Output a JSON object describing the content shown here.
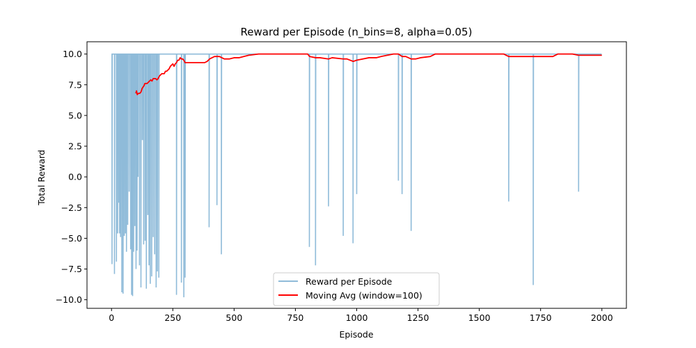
{
  "chart_data": {
    "type": "line",
    "title": "Reward per Episode (n_bins=8, alpha=0.05)",
    "xlabel": "Episode",
    "ylabel": "Total Reward",
    "xlim": [
      -100,
      2100
    ],
    "ylim": [
      -10.7,
      11.0
    ],
    "xticks": [
      0,
      250,
      500,
      750,
      1000,
      1250,
      1500,
      1750,
      2000
    ],
    "xtick_labels": [
      "0",
      "250",
      "500",
      "750",
      "1000",
      "1250",
      "1500",
      "1750",
      "2000"
    ],
    "yticks": [
      -10.0,
      -7.5,
      -5.0,
      -2.5,
      0.0,
      2.5,
      5.0,
      7.5,
      10.0
    ],
    "ytick_labels": [
      "−10.0",
      "−7.5",
      "−5.0",
      "−2.5",
      "0.0",
      "2.5",
      "5.0",
      "7.5",
      "10.0"
    ],
    "grid": false,
    "legend_position": "lower-center",
    "baseline_reward": 10.0,
    "series": [
      {
        "name": "Reward per Episode",
        "color": "#8fbbd9",
        "episodes": 2000,
        "dips": [
          [
            2,
            -7.1
          ],
          [
            12,
            -7.9
          ],
          [
            20,
            -6.9
          ],
          [
            25,
            -4.6
          ],
          [
            30,
            -2.1
          ],
          [
            33,
            -4.6
          ],
          [
            37,
            -4.9
          ],
          [
            42,
            -9.4
          ],
          [
            47,
            -9.5
          ],
          [
            52,
            -4.8
          ],
          [
            57,
            -4.6
          ],
          [
            61,
            -6.1
          ],
          [
            66,
            -3.9
          ],
          [
            72,
            -1.2
          ],
          [
            78,
            -5.9
          ],
          [
            82,
            -9.6
          ],
          [
            86,
            -9.7
          ],
          [
            90,
            -6.1
          ],
          [
            95,
            -4.0
          ],
          [
            100,
            -7.5
          ],
          [
            104,
            -6.0
          ],
          [
            108,
            0.0
          ],
          [
            114,
            -7.2
          ],
          [
            120,
            -9.0
          ],
          [
            126,
            3.0
          ],
          [
            131,
            -5.5
          ],
          [
            137,
            -5.2
          ],
          [
            142,
            -9.1
          ],
          [
            148,
            -3.1
          ],
          [
            153,
            -7.2
          ],
          [
            158,
            -8.7
          ],
          [
            164,
            -8.1
          ],
          [
            170,
            -4.9
          ],
          [
            176,
            -6.3
          ],
          [
            182,
            -9.0
          ],
          [
            187,
            -7.7
          ],
          [
            193,
            -8.2
          ],
          [
            265,
            -9.6
          ],
          [
            285,
            -8.6
          ],
          [
            295,
            -9.8
          ],
          [
            300,
            -8.2
          ],
          [
            398,
            -4.1
          ],
          [
            430,
            -2.3
          ],
          [
            448,
            -6.3
          ],
          [
            807,
            -5.7
          ],
          [
            832,
            -7.2
          ],
          [
            885,
            -2.4
          ],
          [
            945,
            -4.8
          ],
          [
            985,
            -5.4
          ],
          [
            1000,
            -1.4
          ],
          [
            1170,
            -0.3
          ],
          [
            1185,
            -1.4
          ],
          [
            1222,
            -4.4
          ],
          [
            1620,
            -2.0
          ],
          [
            1720,
            -8.8
          ],
          [
            1905,
            -1.2
          ]
        ]
      },
      {
        "name": "Moving Avg (window=100)",
        "color": "#ff0000",
        "x": [
          99,
          102,
          105,
          110,
          115,
          120,
          125,
          128,
          132,
          136,
          140,
          145,
          150,
          155,
          160,
          165,
          170,
          175,
          180,
          185,
          190,
          195,
          200,
          205,
          210,
          215,
          220,
          225,
          230,
          235,
          240,
          245,
          250,
          255,
          260,
          265,
          270,
          275,
          280,
          285,
          290,
          295,
          300,
          305,
          310,
          320,
          340,
          360,
          380,
          390,
          400,
          410,
          420,
          440,
          460,
          480,
          500,
          520,
          540,
          560,
          600,
          650,
          700,
          750,
          800,
          808,
          832,
          850,
          885,
          900,
          946,
          960,
          986,
          1000,
          1050,
          1080,
          1100,
          1150,
          1170,
          1185,
          1200,
          1222,
          1240,
          1260,
          1300,
          1320,
          1350,
          1400,
          1450,
          1500,
          1550,
          1600,
          1620,
          1650,
          1700,
          1720,
          1750,
          1780,
          1800,
          1820,
          1850,
          1880,
          1905,
          1950,
          2000
        ],
        "values": [
          6.8,
          7.0,
          6.7,
          6.8,
          6.8,
          6.9,
          7.2,
          7.3,
          7.4,
          7.6,
          7.6,
          7.6,
          7.7,
          7.8,
          7.9,
          7.8,
          8.0,
          8.0,
          8.0,
          7.9,
          8.0,
          8.2,
          8.3,
          8.4,
          8.4,
          8.4,
          8.6,
          8.6,
          8.7,
          8.8,
          9.0,
          9.1,
          9.2,
          9.0,
          9.2,
          9.3,
          9.5,
          9.5,
          9.7,
          9.6,
          9.6,
          9.5,
          9.3,
          9.3,
          9.3,
          9.3,
          9.3,
          9.3,
          9.3,
          9.4,
          9.6,
          9.7,
          9.8,
          9.8,
          9.6,
          9.6,
          9.7,
          9.7,
          9.8,
          9.9,
          10.0,
          10.0,
          10.0,
          10.0,
          10.0,
          9.8,
          9.7,
          9.7,
          9.6,
          9.7,
          9.6,
          9.6,
          9.4,
          9.5,
          9.7,
          9.7,
          9.8,
          10.0,
          10.0,
          9.8,
          9.8,
          9.6,
          9.6,
          9.7,
          9.8,
          10.0,
          10.0,
          10.0,
          10.0,
          10.0,
          10.0,
          10.0,
          9.8,
          9.8,
          9.8,
          9.8,
          9.8,
          9.8,
          9.8,
          10.0,
          10.0,
          10.0,
          9.9,
          9.9,
          9.9
        ]
      }
    ]
  }
}
